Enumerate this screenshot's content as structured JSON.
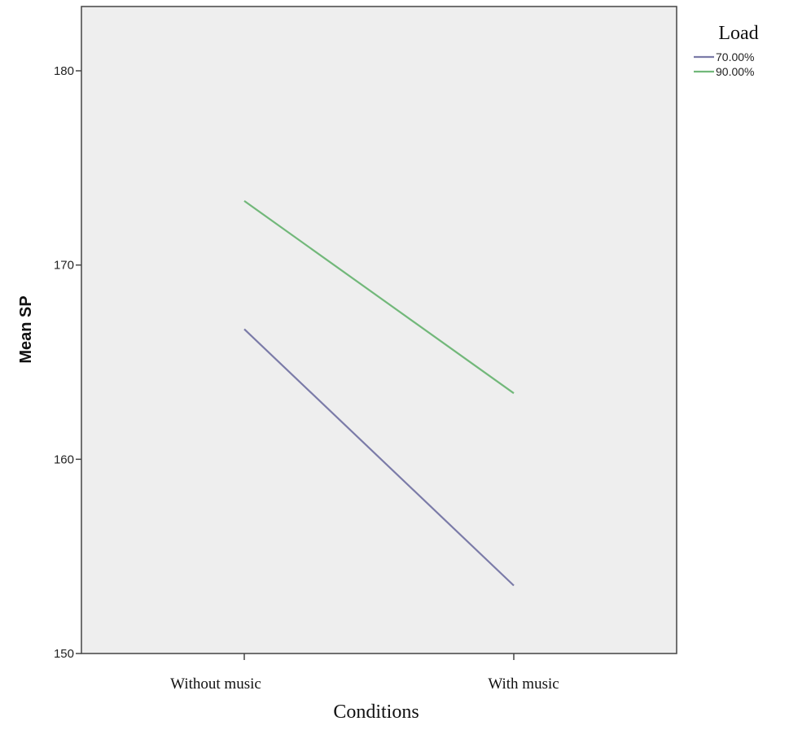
{
  "chart_data": {
    "type": "line",
    "categories": [
      "Without music",
      "With music"
    ],
    "series": [
      {
        "name": "70.00%",
        "color": "#7b7ba8",
        "values": [
          166.7,
          153.5
        ]
      },
      {
        "name": "90.00%",
        "color": "#72b87a",
        "values": [
          173.3,
          163.4
        ]
      }
    ],
    "xlabel": "Conditions",
    "ylabel": "Mean SP",
    "ylim": [
      150,
      183
    ],
    "yticks": [
      150,
      160,
      170,
      180
    ],
    "legend_title": "Load",
    "legend_position": "top-right",
    "grid": false,
    "plot_background": "#eeeeee"
  }
}
